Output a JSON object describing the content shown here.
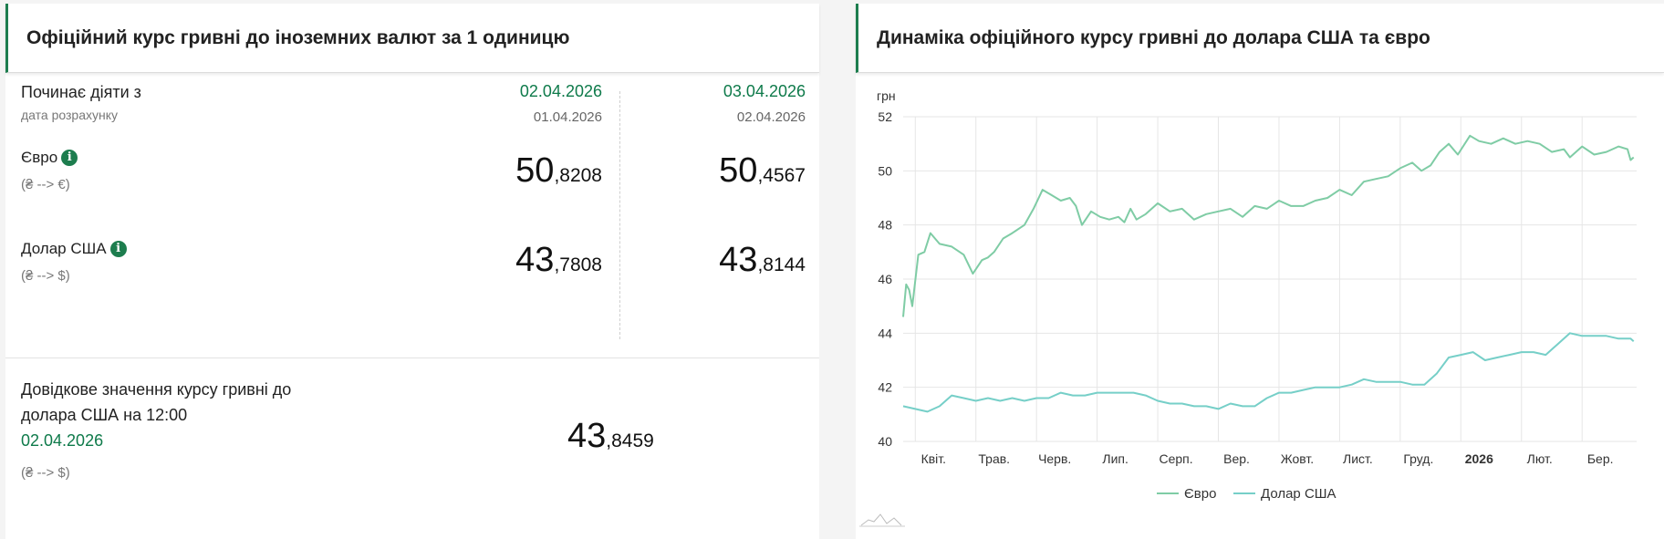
{
  "left_panel": {
    "title": "Офіційний курс гривні до іноземних валют за 1 одиницю",
    "effective_label": "Починає діяти з",
    "calc_label": "дата розрахунку",
    "columns": [
      {
        "effective_date": "02.04.2026",
        "calc_date": "01.04.2026",
        "eur_int": "50",
        "eur_frac": ",8208",
        "usd_int": "43",
        "usd_frac": ",7808"
      },
      {
        "effective_date": "03.04.2026",
        "calc_date": "02.04.2026",
        "eur_int": "50",
        "eur_frac": ",4567",
        "usd_int": "43",
        "usd_frac": ",8144"
      }
    ],
    "eur_label": "Євро",
    "eur_sub": "(₴ --> €)",
    "usd_label": "Долар США",
    "usd_sub": "(₴ --> $)",
    "info_glyph": "i",
    "reference": {
      "line1": "Довідкове значення курсу гривні до",
      "line2": "долара США на 12:00",
      "date": "02.04.2026",
      "sub": "(₴ --> $)",
      "value_int": "43",
      "value_frac": ",8459"
    }
  },
  "right_panel": {
    "title": "Динаміка офіційного курсу гривні до долара США та євро"
  },
  "chart_data": {
    "type": "line",
    "ylabel": "грн",
    "ylim": [
      40,
      52
    ],
    "yticks": [
      "40",
      "42",
      "44",
      "46",
      "48",
      "50",
      "52"
    ],
    "xlim": [
      0,
      12.1
    ],
    "xticks": [
      {
        "pos": 0.2,
        "label": "Квіт.",
        "bold": false
      },
      {
        "pos": 1.2,
        "label": "Трав.",
        "bold": false
      },
      {
        "pos": 2.2,
        "label": "Черв.",
        "bold": false
      },
      {
        "pos": 3.2,
        "label": "Лип.",
        "bold": false
      },
      {
        "pos": 4.2,
        "label": "Серп.",
        "bold": false
      },
      {
        "pos": 5.2,
        "label": "Вер.",
        "bold": false
      },
      {
        "pos": 6.2,
        "label": "Жовт.",
        "bold": false
      },
      {
        "pos": 7.2,
        "label": "Лист.",
        "bold": false
      },
      {
        "pos": 8.2,
        "label": "Груд.",
        "bold": false
      },
      {
        "pos": 9.2,
        "label": "2026",
        "bold": true
      },
      {
        "pos": 10.2,
        "label": "Лют.",
        "bold": false
      },
      {
        "pos": 11.2,
        "label": "Бер.",
        "bold": false
      }
    ],
    "grid": true,
    "legend": "bottom",
    "series": [
      {
        "name": "Євро",
        "color": "#7fcca5",
        "x": [
          0,
          0.05,
          0.1,
          0.15,
          0.25,
          0.35,
          0.45,
          0.6,
          0.8,
          1.0,
          1.15,
          1.3,
          1.4,
          1.5,
          1.65,
          1.8,
          2.0,
          2.15,
          2.3,
          2.45,
          2.6,
          2.75,
          2.85,
          2.95,
          3.1,
          3.25,
          3.4,
          3.55,
          3.65,
          3.75,
          3.85,
          4.0,
          4.2,
          4.4,
          4.6,
          4.8,
          5.0,
          5.2,
          5.4,
          5.6,
          5.8,
          6.0,
          6.2,
          6.4,
          6.6,
          6.8,
          7.0,
          7.2,
          7.4,
          7.6,
          7.8,
          8.0,
          8.2,
          8.4,
          8.55,
          8.7,
          8.85,
          9.0,
          9.15,
          9.35,
          9.5,
          9.7,
          9.9,
          10.1,
          10.3,
          10.5,
          10.7,
          10.9,
          11.0,
          11.2,
          11.4,
          11.6,
          11.8,
          11.95,
          12.0,
          12.05
        ],
        "values": [
          44.6,
          45.8,
          45.6,
          45.0,
          46.9,
          47.0,
          47.7,
          47.3,
          47.2,
          46.9,
          46.2,
          46.7,
          46.8,
          47.0,
          47.5,
          47.7,
          48.0,
          48.6,
          49.3,
          49.1,
          48.9,
          49.0,
          48.7,
          48.0,
          48.5,
          48.3,
          48.2,
          48.3,
          48.1,
          48.6,
          48.2,
          48.4,
          48.8,
          48.5,
          48.6,
          48.2,
          48.4,
          48.5,
          48.6,
          48.3,
          48.7,
          48.6,
          48.9,
          48.7,
          48.7,
          48.9,
          49.0,
          49.3,
          49.1,
          49.6,
          49.7,
          49.8,
          50.1,
          50.3,
          50.0,
          50.2,
          50.7,
          51.0,
          50.6,
          51.3,
          51.1,
          51.0,
          51.2,
          51.0,
          51.1,
          51.0,
          50.7,
          50.8,
          50.5,
          50.9,
          50.6,
          50.7,
          50.9,
          50.8,
          50.4,
          50.5
        ]
      },
      {
        "name": "Долар США",
        "color": "#76cfc8",
        "x": [
          0,
          0.2,
          0.4,
          0.6,
          0.8,
          1.0,
          1.2,
          1.4,
          1.6,
          1.8,
          2.0,
          2.2,
          2.4,
          2.6,
          2.8,
          3.0,
          3.2,
          3.4,
          3.6,
          3.8,
          4.0,
          4.2,
          4.4,
          4.6,
          4.8,
          5.0,
          5.2,
          5.4,
          5.6,
          5.8,
          6.0,
          6.2,
          6.4,
          6.6,
          6.8,
          7.0,
          7.2,
          7.4,
          7.6,
          7.8,
          8.0,
          8.2,
          8.4,
          8.6,
          8.8,
          9.0,
          9.2,
          9.4,
          9.6,
          9.8,
          10.0,
          10.2,
          10.4,
          10.6,
          10.8,
          11.0,
          11.2,
          11.4,
          11.6,
          11.8,
          12.0,
          12.05
        ],
        "values": [
          41.3,
          41.2,
          41.1,
          41.3,
          41.7,
          41.6,
          41.5,
          41.6,
          41.5,
          41.6,
          41.5,
          41.6,
          41.6,
          41.8,
          41.7,
          41.7,
          41.8,
          41.8,
          41.8,
          41.8,
          41.7,
          41.5,
          41.4,
          41.4,
          41.3,
          41.3,
          41.2,
          41.4,
          41.3,
          41.3,
          41.6,
          41.8,
          41.8,
          41.9,
          42.0,
          42.0,
          42.0,
          42.1,
          42.3,
          42.2,
          42.2,
          42.2,
          42.1,
          42.1,
          42.5,
          43.1,
          43.2,
          43.3,
          43.0,
          43.1,
          43.2,
          43.3,
          43.3,
          43.2,
          43.6,
          44.0,
          43.9,
          43.9,
          43.9,
          43.8,
          43.8,
          43.7
        ]
      }
    ]
  }
}
